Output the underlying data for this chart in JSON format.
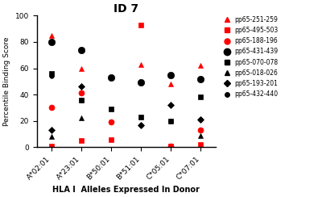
{
  "title": "ID 7",
  "xlabel": "HLA I  Alleles Expressed In Donor",
  "ylabel": "Percentile Binding Score",
  "categories": [
    "A*02:01",
    "A*23:01",
    "B*50:01",
    "B*51:01",
    "C*05:01",
    "C*07:01"
  ],
  "ylim": [
    0,
    100
  ],
  "series": [
    {
      "label": "pp65-251-259",
      "color": "red",
      "marker": "^",
      "markersize": 5,
      "values": [
        85,
        60,
        null,
        63,
        48,
        62
      ]
    },
    {
      "label": "pp65-495-503",
      "color": "red",
      "marker": "s",
      "markersize": 5,
      "values": [
        1,
        5,
        6,
        93,
        1,
        2
      ]
    },
    {
      "label": "pp65-188-196",
      "color": "red",
      "marker": "o",
      "markersize": 5,
      "values": [
        30,
        41,
        19,
        null,
        1,
        13
      ]
    },
    {
      "label": "pp65-431-439",
      "color": "black",
      "marker": "o",
      "markersize": 6,
      "values": [
        80,
        74,
        53,
        49,
        55,
        52
      ]
    },
    {
      "label": "pp65-070-078",
      "color": "black",
      "marker": "s",
      "markersize": 5,
      "values": [
        56,
        36,
        29,
        23,
        20,
        38
      ]
    },
    {
      "label": "pp65-018-026",
      "color": "black",
      "marker": "^",
      "markersize": 5,
      "values": [
        8,
        22,
        null,
        null,
        null,
        9
      ]
    },
    {
      "label": "pp65-193-201",
      "color": "black",
      "marker": "D",
      "markersize": 4,
      "values": [
        13,
        46,
        null,
        17,
        32,
        21
      ]
    },
    {
      "label": "pp65-432-440",
      "color": "black",
      "marker": "o",
      "markersize": 4,
      "values": [
        54,
        36,
        53,
        17,
        20,
        21
      ]
    }
  ]
}
